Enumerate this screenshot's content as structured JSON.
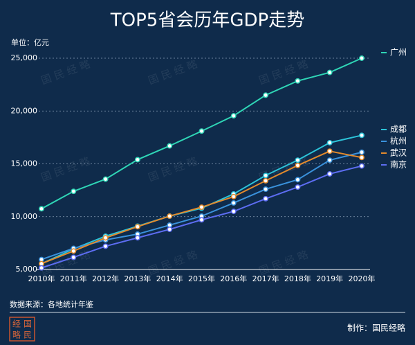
{
  "chart_data": {
    "type": "line",
    "title": "TOP5省会历年GDP走势",
    "unit": "单位：亿元",
    "categories": [
      "2010年",
      "2011年",
      "2012年",
      "2013年",
      "2014年",
      "2015年",
      "2016年",
      "2017年",
      "2018年",
      "2019年",
      "2020年"
    ],
    "series": [
      {
        "name": "广州",
        "color": "#2fd6b6",
        "values": [
          10750,
          12400,
          13550,
          15400,
          16700,
          18100,
          19550,
          21500,
          22850,
          23650,
          25000
        ]
      },
      {
        "name": "成都",
        "color": "#2cc3d8",
        "values": [
          5550,
          6950,
          8150,
          9100,
          10050,
          10800,
          12150,
          13900,
          15350,
          17000,
          17700
        ]
      },
      {
        "name": "杭州",
        "color": "#3a92dc",
        "values": [
          5950,
          7000,
          7800,
          8350,
          9200,
          10050,
          11300,
          12600,
          13500,
          15350,
          16100
        ]
      },
      {
        "name": "武汉",
        "color": "#e38a2c",
        "values": [
          5550,
          6750,
          8000,
          9050,
          10050,
          10900,
          11900,
          13400,
          14850,
          16200,
          15600
        ]
      },
      {
        "name": "南京",
        "color": "#5d6df2",
        "values": [
          5150,
          6150,
          7200,
          8000,
          8800,
          9700,
          10500,
          11700,
          12800,
          14050,
          14800
        ]
      }
    ],
    "ylim": [
      5000,
      25000
    ],
    "yticks": [
      {
        "value": 5000,
        "label": "5,000"
      },
      {
        "value": 10000,
        "label": "10,000"
      },
      {
        "value": 15000,
        "label": "15,000"
      },
      {
        "value": 20000,
        "label": "20,000"
      },
      {
        "value": 25000,
        "label": "25,000"
      }
    ],
    "grid": true,
    "source": "数据来源：各地统计年鉴",
    "credit": "制作：国民经略",
    "watermark": "国 民 经 略",
    "logo": [
      "经",
      "国",
      "略",
      "民"
    ]
  }
}
